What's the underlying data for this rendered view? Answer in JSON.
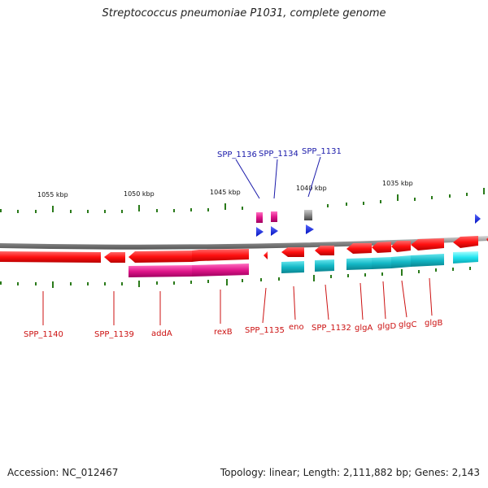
{
  "title": "Streptococcus pneumoniae P1031, complete genome",
  "footer": {
    "accession": "Accession: NC_012467",
    "topology": "Topology: linear; Length: 2,111,882 bp; Genes: 2,143"
  },
  "scale_labels": [
    "1055 kbp",
    "1050 kbp",
    "1045 kbp",
    "1040 kbp",
    "1035 kbp"
  ],
  "colors": {
    "forward_cds": "#ff1a1a",
    "reverse_cds": "#ff1a1a",
    "gene_pink": "#ee1188",
    "gene_cyan": "#11bbcc",
    "blue_arrow": "#0022ee",
    "tick_green": "#2a7a1a",
    "backbone": "#888888",
    "blue_label": "#1a1aaa",
    "red_label": "#cc1111"
  },
  "top_labels": [
    "SPP_1136",
    "SPP_1134",
    "SPP_1131"
  ],
  "bottom_labels": [
    "SPP_1140",
    "SPP_1139",
    "addA",
    "rexB",
    "SPP_1135",
    "eno",
    "SPP_1132",
    "glgA",
    "glgD",
    "glgC",
    "glgB"
  ]
}
